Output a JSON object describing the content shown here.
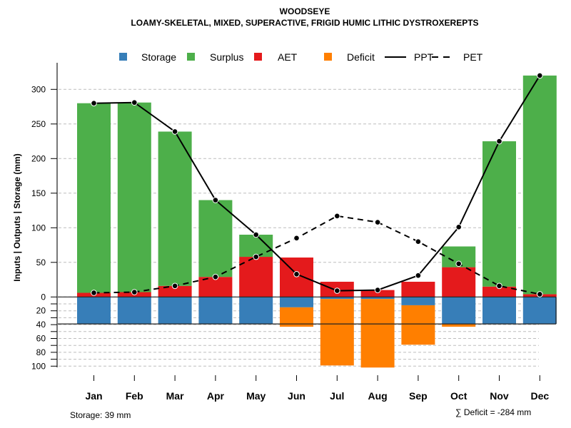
{
  "chart_data": {
    "type": "bar",
    "title": "WOODSEYE",
    "subtitle": "LOAMY-SKELETAL, MIXED, SUPERACTIVE, FRIGID HUMIC LITHIC DYSTROXEREPTS",
    "xlabel": "",
    "ylabel": "Inputs | Outputs | Storage    (mm)",
    "categories": [
      "Jan",
      "Feb",
      "Mar",
      "Apr",
      "May",
      "Jun",
      "Jul",
      "Aug",
      "Sep",
      "Oct",
      "Nov",
      "Dec"
    ],
    "ylim_upper": [
      0,
      320
    ],
    "ylim_lower": [
      0,
      100
    ],
    "yticks_upper": [
      0,
      50,
      100,
      150,
      200,
      250,
      300
    ],
    "yticks_lower": [
      20,
      40,
      60,
      80,
      100
    ],
    "grid": true,
    "legend_position": "top",
    "legend": [
      {
        "name": "Storage",
        "kind": "box",
        "color": "#377EB8"
      },
      {
        "name": "Surplus",
        "kind": "box",
        "color": "#4DAF4A"
      },
      {
        "name": "AET",
        "kind": "box",
        "color": "#E41A1C"
      },
      {
        "name": "Deficit",
        "kind": "box",
        "color": "#FF7F00"
      },
      {
        "name": "PPT",
        "kind": "solid-line",
        "color": "#000000"
      },
      {
        "name": "PET",
        "kind": "dashed-line",
        "color": "#000000"
      }
    ],
    "series": [
      {
        "name": "AET",
        "stack": "above",
        "color": "#E41A1C",
        "values": [
          6,
          7,
          16,
          29,
          58,
          57,
          22,
          10,
          22,
          43,
          15,
          4
        ]
      },
      {
        "name": "Surplus",
        "stack": "above",
        "color": "#4DAF4A",
        "values": [
          274,
          274,
          223,
          111,
          32,
          0,
          0,
          0,
          0,
          30,
          210,
          316
        ]
      },
      {
        "name": "Storage",
        "stack": "below",
        "color": "#377EB8",
        "values": [
          39,
          39,
          39,
          39,
          39,
          15,
          3,
          3,
          12,
          39,
          39,
          39
        ]
      },
      {
        "name": "Deficit",
        "stack": "below",
        "color": "#FF7F00",
        "values": [
          0,
          0,
          0,
          0,
          0,
          28,
          96,
          99,
          57,
          4,
          0,
          0
        ]
      },
      {
        "name": "PPT",
        "type": "line",
        "style": "solid",
        "color": "#000000",
        "values": [
          280,
          281,
          239,
          140,
          90,
          33,
          9,
          10,
          31,
          101,
          225,
          320
        ]
      },
      {
        "name": "PET",
        "type": "line",
        "style": "dashed",
        "color": "#000000",
        "values": [
          6,
          7,
          16,
          29,
          58,
          85,
          117,
          108,
          80,
          48,
          16,
          4
        ]
      }
    ],
    "storage_capacity": 39,
    "annotations": {
      "storage": "Storage: 39 mm",
      "deficit_sum": "∑ Deficit = -284 mm"
    }
  }
}
